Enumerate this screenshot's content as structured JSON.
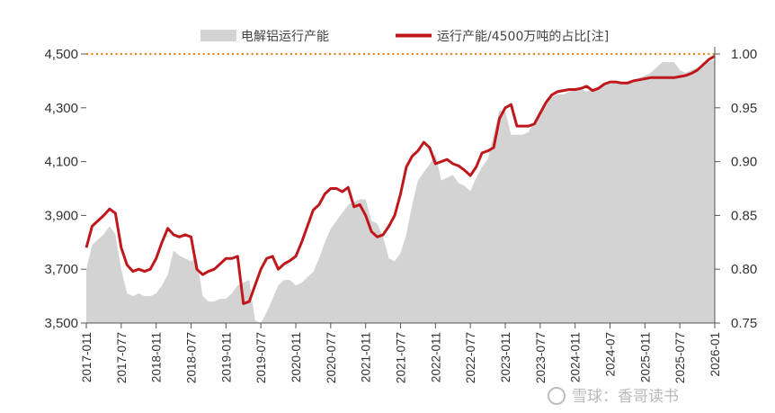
{
  "chart_data": {
    "type": "area+line",
    "legend": [
      "电解铝运行产能",
      "运行产能/4500万吨的占比[注]"
    ],
    "legend_position": "top",
    "left_axis": {
      "ylim": [
        3500,
        4500
      ],
      "ticks": [
        "3,500",
        "3,700",
        "3,900",
        "4,100",
        "4,300",
        "4,500"
      ]
    },
    "right_axis": {
      "ylim": [
        0.75,
        1.0
      ],
      "ticks": [
        "0.75",
        "0.80",
        "0.85",
        "0.90",
        "0.95",
        "1.00"
      ]
    },
    "reference_line": {
      "value": 1.0,
      "axis": "right",
      "style": "dotted",
      "color": "#e08a2c"
    },
    "x_ticks": [
      "2017-011",
      "2017-077",
      "2018-011",
      "2018-077",
      "2019-011",
      "2019-077",
      "2020-011",
      "2020-077",
      "2021-011",
      "2021-077",
      "2022-011",
      "2022-077",
      "2023-011",
      "2023-077",
      "2024-011",
      "2024-07",
      "2025-011",
      "2025-077",
      "2026-01"
    ],
    "x_start": "2017-01",
    "x_end": "2026-01",
    "series": [
      {
        "name": "电解铝运行产能",
        "type": "area",
        "color": "#d3d3d3",
        "axis": "left",
        "points": [
          [
            "2017-01",
            3700
          ],
          [
            "2017-02",
            3790
          ],
          [
            "2017-03",
            3810
          ],
          [
            "2017-04",
            3830
          ],
          [
            "2017-05",
            3860
          ],
          [
            "2017-06",
            3830
          ],
          [
            "2017-07",
            3700
          ],
          [
            "2017-08",
            3610
          ],
          [
            "2017-09",
            3600
          ],
          [
            "2017-10",
            3610
          ],
          [
            "2017-11",
            3600
          ],
          [
            "2017-12",
            3600
          ],
          [
            "2018-01",
            3610
          ],
          [
            "2018-02",
            3640
          ],
          [
            "2018-03",
            3680
          ],
          [
            "2018-04",
            3770
          ],
          [
            "2018-05",
            3750
          ],
          [
            "2018-06",
            3740
          ],
          [
            "2018-07",
            3730
          ],
          [
            "2018-08",
            3740
          ],
          [
            "2018-09",
            3600
          ],
          [
            "2018-10",
            3580
          ],
          [
            "2018-11",
            3580
          ],
          [
            "2018-12",
            3590
          ],
          [
            "2019-01",
            3590
          ],
          [
            "2019-02",
            3610
          ],
          [
            "2019-03",
            3640
          ],
          [
            "2019-04",
            3650
          ],
          [
            "2019-05",
            3660
          ],
          [
            "2019-06",
            3510
          ],
          [
            "2019-07",
            3490
          ],
          [
            "2019-08",
            3540
          ],
          [
            "2019-09",
            3590
          ],
          [
            "2019-10",
            3640
          ],
          [
            "2019-11",
            3660
          ],
          [
            "2019-12",
            3660
          ],
          [
            "2020-01",
            3640
          ],
          [
            "2020-02",
            3650
          ],
          [
            "2020-03",
            3670
          ],
          [
            "2020-04",
            3690
          ],
          [
            "2020-05",
            3740
          ],
          [
            "2020-06",
            3800
          ],
          [
            "2020-07",
            3850
          ],
          [
            "2020-08",
            3880
          ],
          [
            "2020-09",
            3910
          ],
          [
            "2020-10",
            3940
          ],
          [
            "2020-11",
            3950
          ],
          [
            "2020-12",
            3960
          ],
          [
            "2021-01",
            3960
          ],
          [
            "2021-02",
            3880
          ],
          [
            "2021-03",
            3870
          ],
          [
            "2021-04",
            3820
          ],
          [
            "2021-05",
            3740
          ],
          [
            "2021-06",
            3730
          ],
          [
            "2021-07",
            3760
          ],
          [
            "2021-08",
            3830
          ],
          [
            "2021-09",
            3940
          ],
          [
            "2021-10",
            4030
          ],
          [
            "2021-11",
            4060
          ],
          [
            "2021-12",
            4090
          ],
          [
            "2022-01",
            4130
          ],
          [
            "2022-02",
            4030
          ],
          [
            "2022-03",
            4040
          ],
          [
            "2022-04",
            4050
          ],
          [
            "2022-05",
            4020
          ],
          [
            "2022-06",
            4010
          ],
          [
            "2022-07",
            3990
          ],
          [
            "2022-08",
            4040
          ],
          [
            "2022-09",
            4080
          ],
          [
            "2022-10",
            4110
          ],
          [
            "2022-11",
            4200
          ],
          [
            "2022-12",
            4290
          ],
          [
            "2023-01",
            4290
          ],
          [
            "2023-02",
            4200
          ],
          [
            "2023-03",
            4200
          ],
          [
            "2023-04",
            4200
          ],
          [
            "2023-05",
            4210
          ],
          [
            "2023-06",
            4250
          ],
          [
            "2023-07",
            4290
          ],
          [
            "2023-08",
            4320
          ],
          [
            "2023-09",
            4340
          ],
          [
            "2023-10",
            4350
          ],
          [
            "2023-11",
            4350
          ],
          [
            "2023-12",
            4360
          ],
          [
            "2024-01",
            4370
          ],
          [
            "2024-02",
            4370
          ],
          [
            "2024-03",
            4360
          ],
          [
            "2024-04",
            4370
          ],
          [
            "2024-05",
            4380
          ],
          [
            "2024-06",
            4390
          ],
          [
            "2024-07",
            4390
          ],
          [
            "2024-08",
            4390
          ],
          [
            "2024-09",
            4390
          ],
          [
            "2024-10",
            4395
          ],
          [
            "2024-11",
            4400
          ],
          [
            "2024-12",
            4410
          ],
          [
            "2025-01",
            4420
          ],
          [
            "2025-02",
            4430
          ],
          [
            "2025-03",
            4450
          ],
          [
            "2025-04",
            4470
          ],
          [
            "2025-05",
            4470
          ],
          [
            "2025-06",
            4470
          ],
          [
            "2025-07",
            4440
          ],
          [
            "2025-08",
            4430
          ],
          [
            "2025-09",
            4440
          ],
          [
            "2025-10",
            4450
          ],
          [
            "2025-11",
            4460
          ],
          [
            "2025-12",
            4470
          ],
          [
            "2026-01",
            4480
          ]
        ]
      },
      {
        "name": "运行产能/4500万吨的占比[注]",
        "type": "line",
        "color": "#c0171c",
        "axis": "right",
        "points": [
          [
            "2017-01",
            0.82
          ],
          [
            "2017-02",
            0.84
          ],
          [
            "2017-03",
            0.845
          ],
          [
            "2017-04",
            0.85
          ],
          [
            "2017-05",
            0.856
          ],
          [
            "2017-06",
            0.852
          ],
          [
            "2017-07",
            0.82
          ],
          [
            "2017-08",
            0.804
          ],
          [
            "2017-09",
            0.798
          ],
          [
            "2017-10",
            0.8
          ],
          [
            "2017-11",
            0.798
          ],
          [
            "2017-12",
            0.8
          ],
          [
            "2018-01",
            0.81
          ],
          [
            "2018-02",
            0.825
          ],
          [
            "2018-03",
            0.838
          ],
          [
            "2018-04",
            0.832
          ],
          [
            "2018-05",
            0.83
          ],
          [
            "2018-06",
            0.832
          ],
          [
            "2018-07",
            0.83
          ],
          [
            "2018-08",
            0.8
          ],
          [
            "2018-09",
            0.795
          ],
          [
            "2018-10",
            0.798
          ],
          [
            "2018-11",
            0.8
          ],
          [
            "2018-12",
            0.805
          ],
          [
            "2019-01",
            0.81
          ],
          [
            "2019-02",
            0.81
          ],
          [
            "2019-03",
            0.812
          ],
          [
            "2019-04",
            0.768
          ],
          [
            "2019-05",
            0.77
          ],
          [
            "2019-06",
            0.785
          ],
          [
            "2019-07",
            0.8
          ],
          [
            "2019-08",
            0.81
          ],
          [
            "2019-09",
            0.812
          ],
          [
            "2019-10",
            0.8
          ],
          [
            "2019-11",
            0.805
          ],
          [
            "2019-12",
            0.808
          ],
          [
            "2020-01",
            0.812
          ],
          [
            "2020-02",
            0.825
          ],
          [
            "2020-03",
            0.84
          ],
          [
            "2020-04",
            0.855
          ],
          [
            "2020-05",
            0.86
          ],
          [
            "2020-06",
            0.87
          ],
          [
            "2020-07",
            0.875
          ],
          [
            "2020-08",
            0.875
          ],
          [
            "2020-09",
            0.872
          ],
          [
            "2020-10",
            0.876
          ],
          [
            "2020-11",
            0.858
          ],
          [
            "2020-12",
            0.86
          ],
          [
            "2021-01",
            0.85
          ],
          [
            "2021-02",
            0.835
          ],
          [
            "2021-03",
            0.83
          ],
          [
            "2021-04",
            0.832
          ],
          [
            "2021-05",
            0.84
          ],
          [
            "2021-06",
            0.85
          ],
          [
            "2021-07",
            0.87
          ],
          [
            "2021-08",
            0.895
          ],
          [
            "2021-09",
            0.905
          ],
          [
            "2021-10",
            0.91
          ],
          [
            "2021-11",
            0.918
          ],
          [
            "2021-12",
            0.913
          ],
          [
            "2022-01",
            0.898
          ],
          [
            "2022-02",
            0.9
          ],
          [
            "2022-03",
            0.902
          ],
          [
            "2022-04",
            0.898
          ],
          [
            "2022-05",
            0.896
          ],
          [
            "2022-06",
            0.892
          ],
          [
            "2022-07",
            0.887
          ],
          [
            "2022-08",
            0.895
          ],
          [
            "2022-09",
            0.908
          ],
          [
            "2022-10",
            0.91
          ],
          [
            "2022-11",
            0.913
          ],
          [
            "2022-12",
            0.94
          ],
          [
            "2023-01",
            0.95
          ],
          [
            "2023-02",
            0.953
          ],
          [
            "2023-03",
            0.933
          ],
          [
            "2023-04",
            0.933
          ],
          [
            "2023-05",
            0.933
          ],
          [
            "2023-06",
            0.935
          ],
          [
            "2023-07",
            0.945
          ],
          [
            "2023-08",
            0.955
          ],
          [
            "2023-09",
            0.962
          ],
          [
            "2023-10",
            0.965
          ],
          [
            "2023-11",
            0.966
          ],
          [
            "2023-12",
            0.967
          ],
          [
            "2024-01",
            0.967
          ],
          [
            "2024-02",
            0.968
          ],
          [
            "2024-03",
            0.97
          ],
          [
            "2024-04",
            0.966
          ],
          [
            "2024-05",
            0.968
          ],
          [
            "2024-06",
            0.972
          ],
          [
            "2024-07",
            0.974
          ],
          [
            "2024-08",
            0.974
          ],
          [
            "2024-09",
            0.973
          ],
          [
            "2024-10",
            0.973
          ],
          [
            "2024-11",
            0.975
          ],
          [
            "2024-12",
            0.976
          ],
          [
            "2025-01",
            0.977
          ],
          [
            "2025-02",
            0.978
          ],
          [
            "2025-03",
            0.978
          ],
          [
            "2025-04",
            0.978
          ],
          [
            "2025-05",
            0.978
          ],
          [
            "2025-06",
            0.978
          ],
          [
            "2025-07",
            0.979
          ],
          [
            "2025-08",
            0.98
          ],
          [
            "2025-09",
            0.982
          ],
          [
            "2025-10",
            0.985
          ],
          [
            "2025-11",
            0.99
          ],
          [
            "2025-12",
            0.995
          ],
          [
            "2026-01",
            0.998
          ]
        ]
      }
    ]
  },
  "watermark": "雪球：香哥读书"
}
